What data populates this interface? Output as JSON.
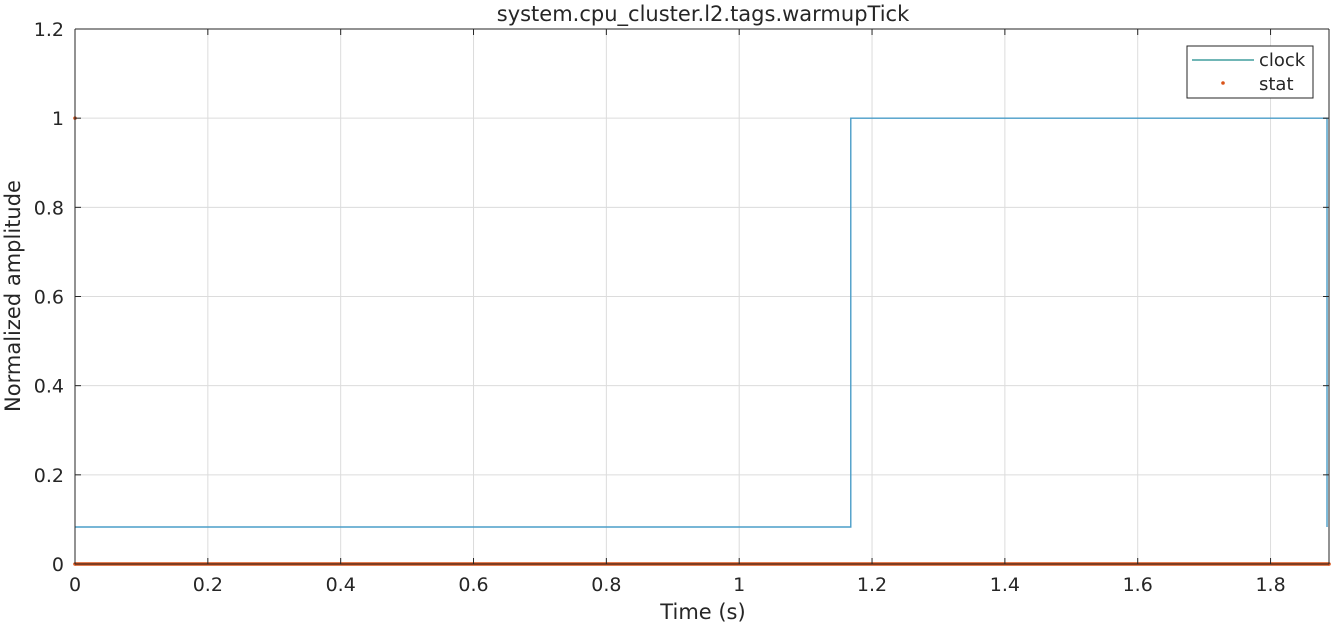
{
  "chart_data": {
    "type": "line",
    "title": "system.cpu_cluster.l2.tags.warmupTick",
    "xlabel": "Time (s)",
    "ylabel": "Normalized amplitude",
    "xlim": [
      0,
      1.888
    ],
    "ylim": [
      0,
      1.2
    ],
    "xticks": [
      0,
      0.2,
      0.4,
      0.6,
      0.8,
      1,
      1.2,
      1.4,
      1.6,
      1.8
    ],
    "xtick_labels": [
      "0",
      "0.2",
      "0.4",
      "0.6",
      "0.8",
      "1",
      "1.2",
      "1.4",
      "1.6",
      "1.8"
    ],
    "yticks": [
      0,
      0.2,
      0.4,
      0.6,
      0.8,
      1,
      1.2
    ],
    "ytick_labels": [
      "0",
      "0.2",
      "0.4",
      "0.6",
      "0.8",
      "1",
      "1.2"
    ],
    "grid": true,
    "legend_position": "top-right",
    "series": [
      {
        "name": "clock",
        "style": "line",
        "color": "#4a9dc8",
        "legend_color": "#1a8a8a",
        "x": [
          0,
          1.168,
          1.168,
          1.885,
          1.885
        ],
        "y": [
          0.083,
          0.083,
          1,
          1,
          0.083
        ]
      },
      {
        "name": "stat",
        "style": "points",
        "color": "#d95319",
        "x": [
          0,
          0,
          1.888
        ],
        "y": [
          1,
          0,
          0
        ]
      }
    ]
  }
}
